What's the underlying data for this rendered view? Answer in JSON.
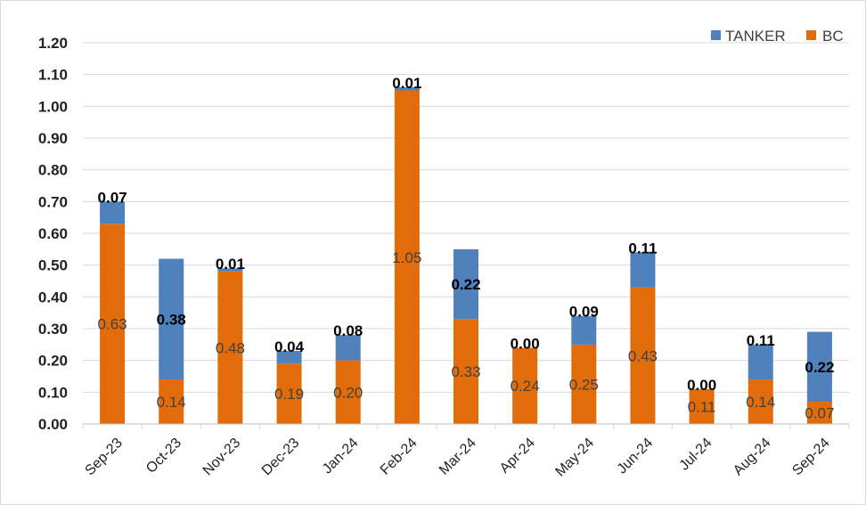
{
  "chart_data": {
    "type": "bar",
    "stacked": true,
    "categories": [
      "Sep-23",
      "Oct-23",
      "Nov-23",
      "Dec-23",
      "Jan-24",
      "Feb-24",
      "Mar-24",
      "Apr-24",
      "May-24",
      "Jun-24",
      "Jul-24",
      "Aug-24",
      "Sep-24"
    ],
    "series": [
      {
        "name": "BC",
        "color": "#e36c0a",
        "values": [
          0.63,
          0.14,
          0.48,
          0.19,
          0.2,
          1.05,
          0.33,
          0.24,
          0.25,
          0.43,
          0.11,
          0.14,
          0.07
        ]
      },
      {
        "name": "TANKER",
        "color": "#4f81bd",
        "values": [
          0.07,
          0.38,
          0.01,
          0.04,
          0.08,
          0.01,
          0.22,
          0.0,
          0.09,
          0.11,
          0.0,
          0.11,
          0.22
        ]
      }
    ],
    "ylim": [
      0,
      1.2
    ],
    "yticks": [
      "0.00",
      "0.10",
      "0.20",
      "0.30",
      "0.40",
      "0.50",
      "0.60",
      "0.70",
      "0.80",
      "0.90",
      "1.00",
      "1.10",
      "1.20"
    ],
    "legend": [
      "TANKER",
      "BC"
    ],
    "legend_position": "top-right",
    "grid": true
  }
}
